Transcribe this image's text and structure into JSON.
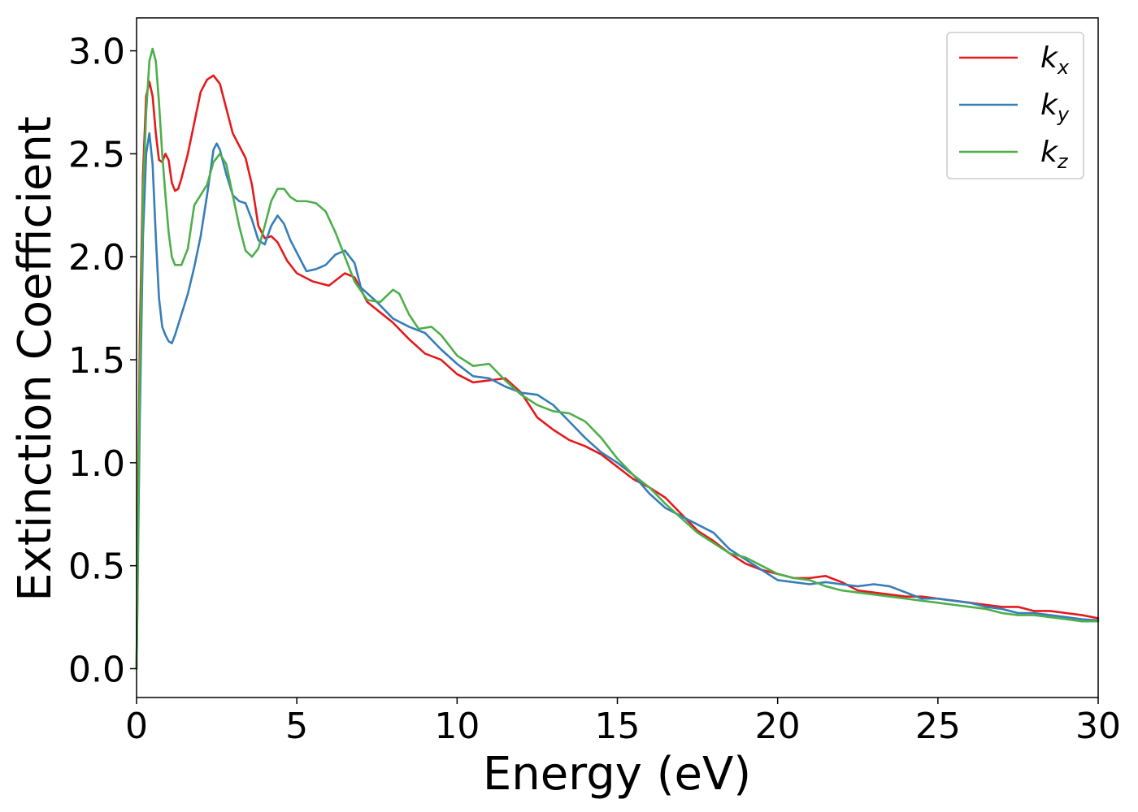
{
  "chart_data": {
    "type": "line",
    "xlabel": "Energy (eV)",
    "ylabel": "Extinction Coefficient",
    "xlim": [
      0,
      30
    ],
    "ylim": [
      -0.14,
      3.16
    ],
    "xticks": [
      0,
      5,
      10,
      15,
      20,
      25,
      30
    ],
    "yticks": [
      0.0,
      0.5,
      1.0,
      1.5,
      2.0,
      2.5,
      3.0
    ],
    "xtick_labels": [
      "0",
      "5",
      "10",
      "15",
      "20",
      "25",
      "30"
    ],
    "ytick_labels": [
      "0.0",
      "0.5",
      "1.0",
      "1.5",
      "2.0",
      "2.5",
      "3.0"
    ],
    "grid": false,
    "legend_position": "top-right",
    "series": [
      {
        "name": "k",
        "subscript": "x",
        "color": "#e41a1c",
        "x": [
          0,
          0.1,
          0.2,
          0.3,
          0.4,
          0.5,
          0.6,
          0.7,
          0.8,
          0.9,
          1.0,
          1.1,
          1.2,
          1.3,
          1.4,
          1.6,
          1.8,
          2.0,
          2.2,
          2.4,
          2.6,
          2.8,
          3.0,
          3.2,
          3.4,
          3.6,
          3.8,
          4.0,
          4.2,
          4.4,
          4.7,
          5.0,
          5.5,
          6.0,
          6.5,
          6.8,
          7.2,
          7.6,
          8.0,
          8.5,
          9.0,
          9.5,
          10.0,
          10.5,
          11.0,
          11.5,
          12.0,
          12.5,
          13.0,
          13.5,
          14.0,
          14.5,
          15.0,
          15.5,
          16.0,
          16.5,
          17.0,
          17.5,
          18.0,
          18.5,
          19.0,
          19.5,
          20.0,
          20.5,
          21.0,
          21.5,
          22.0,
          22.5,
          23.0,
          23.5,
          24.0,
          24.5,
          25.0,
          25.5,
          26.0,
          26.5,
          27.0,
          27.5,
          28.0,
          28.5,
          29.0,
          29.5,
          30.0
        ],
        "values": [
          0.0,
          1.6,
          2.4,
          2.78,
          2.85,
          2.78,
          2.6,
          2.47,
          2.46,
          2.5,
          2.47,
          2.36,
          2.32,
          2.33,
          2.38,
          2.5,
          2.65,
          2.8,
          2.86,
          2.88,
          2.84,
          2.72,
          2.6,
          2.54,
          2.48,
          2.35,
          2.15,
          2.09,
          2.1,
          2.07,
          1.98,
          1.92,
          1.88,
          1.86,
          1.92,
          1.9,
          1.78,
          1.73,
          1.68,
          1.6,
          1.53,
          1.5,
          1.43,
          1.39,
          1.4,
          1.41,
          1.34,
          1.22,
          1.16,
          1.11,
          1.08,
          1.04,
          0.98,
          0.92,
          0.88,
          0.83,
          0.75,
          0.67,
          0.62,
          0.56,
          0.51,
          0.48,
          0.46,
          0.44,
          0.44,
          0.45,
          0.42,
          0.38,
          0.37,
          0.36,
          0.35,
          0.35,
          0.34,
          0.33,
          0.32,
          0.31,
          0.3,
          0.3,
          0.28,
          0.28,
          0.27,
          0.26,
          0.245
        ]
      },
      {
        "name": "k",
        "subscript": "y",
        "color": "#377eb8",
        "x": [
          0,
          0.1,
          0.2,
          0.3,
          0.4,
          0.5,
          0.6,
          0.7,
          0.8,
          0.9,
          1.0,
          1.1,
          1.2,
          1.4,
          1.6,
          1.8,
          2.0,
          2.2,
          2.4,
          2.5,
          2.6,
          2.8,
          3.0,
          3.2,
          3.4,
          3.6,
          3.8,
          4.0,
          4.2,
          4.4,
          4.6,
          4.8,
          5.0,
          5.3,
          5.6,
          5.9,
          6.2,
          6.5,
          6.8,
          7.0,
          7.5,
          8.0,
          8.5,
          9.0,
          9.5,
          10.0,
          10.5,
          11.0,
          11.5,
          12.0,
          12.5,
          13.0,
          13.5,
          14.0,
          14.5,
          15.0,
          15.5,
          16.0,
          16.5,
          17.0,
          17.5,
          18.0,
          18.5,
          19.0,
          19.5,
          20.0,
          20.5,
          21.0,
          21.5,
          22.0,
          22.5,
          23.0,
          23.5,
          24.0,
          24.5,
          25.0,
          25.5,
          26.0,
          26.5,
          27.0,
          27.5,
          28.0,
          28.5,
          29.0,
          29.5,
          30.0
        ],
        "values": [
          0.0,
          1.2,
          2.1,
          2.5,
          2.6,
          2.45,
          2.1,
          1.8,
          1.66,
          1.62,
          1.59,
          1.58,
          1.62,
          1.72,
          1.82,
          1.95,
          2.1,
          2.3,
          2.52,
          2.55,
          2.52,
          2.4,
          2.3,
          2.27,
          2.26,
          2.18,
          2.08,
          2.06,
          2.15,
          2.2,
          2.16,
          2.08,
          2.02,
          1.93,
          1.94,
          1.96,
          2.01,
          2.03,
          1.97,
          1.85,
          1.78,
          1.7,
          1.66,
          1.63,
          1.55,
          1.48,
          1.42,
          1.41,
          1.37,
          1.34,
          1.33,
          1.28,
          1.2,
          1.12,
          1.05,
          1.0,
          0.94,
          0.85,
          0.78,
          0.74,
          0.7,
          0.66,
          0.58,
          0.53,
          0.48,
          0.43,
          0.42,
          0.41,
          0.42,
          0.41,
          0.4,
          0.41,
          0.4,
          0.37,
          0.34,
          0.34,
          0.33,
          0.32,
          0.3,
          0.29,
          0.27,
          0.27,
          0.26,
          0.25,
          0.24,
          0.235
        ]
      },
      {
        "name": "k",
        "subscript": "z",
        "color": "#4daf4a",
        "x": [
          0,
          0.1,
          0.2,
          0.3,
          0.4,
          0.5,
          0.6,
          0.7,
          0.8,
          0.9,
          1.0,
          1.1,
          1.2,
          1.4,
          1.6,
          1.8,
          2.0,
          2.2,
          2.4,
          2.6,
          2.8,
          3.0,
          3.2,
          3.4,
          3.6,
          3.8,
          4.0,
          4.2,
          4.4,
          4.6,
          4.8,
          5.0,
          5.3,
          5.6,
          5.9,
          6.2,
          6.5,
          6.8,
          7.2,
          7.6,
          8.0,
          8.2,
          8.5,
          8.8,
          9.2,
          9.5,
          10.0,
          10.5,
          11.0,
          11.5,
          12.0,
          12.5,
          13.0,
          13.5,
          14.0,
          14.5,
          15.0,
          15.5,
          16.0,
          16.5,
          17.0,
          17.5,
          18.0,
          18.5,
          19.0,
          19.5,
          20.0,
          20.5,
          21.0,
          21.5,
          22.0,
          22.5,
          23.0,
          23.5,
          24.0,
          24.5,
          25.0,
          25.5,
          26.0,
          26.5,
          27.0,
          27.5,
          28.0,
          28.5,
          29.0,
          29.5,
          30.0
        ],
        "values": [
          0.0,
          1.4,
          2.3,
          2.7,
          2.95,
          3.01,
          2.95,
          2.75,
          2.5,
          2.3,
          2.12,
          2.0,
          1.96,
          1.96,
          2.04,
          2.25,
          2.3,
          2.35,
          2.46,
          2.5,
          2.45,
          2.3,
          2.15,
          2.03,
          2.0,
          2.04,
          2.15,
          2.27,
          2.33,
          2.33,
          2.29,
          2.27,
          2.27,
          2.26,
          2.22,
          2.12,
          2.0,
          1.88,
          1.79,
          1.78,
          1.84,
          1.82,
          1.72,
          1.65,
          1.66,
          1.62,
          1.52,
          1.47,
          1.48,
          1.4,
          1.33,
          1.28,
          1.25,
          1.24,
          1.2,
          1.12,
          1.02,
          0.94,
          0.88,
          0.8,
          0.73,
          0.66,
          0.61,
          0.56,
          0.54,
          0.5,
          0.46,
          0.44,
          0.43,
          0.4,
          0.38,
          0.37,
          0.36,
          0.35,
          0.34,
          0.33,
          0.32,
          0.31,
          0.3,
          0.29,
          0.27,
          0.26,
          0.26,
          0.25,
          0.24,
          0.23,
          0.23
        ]
      }
    ]
  }
}
